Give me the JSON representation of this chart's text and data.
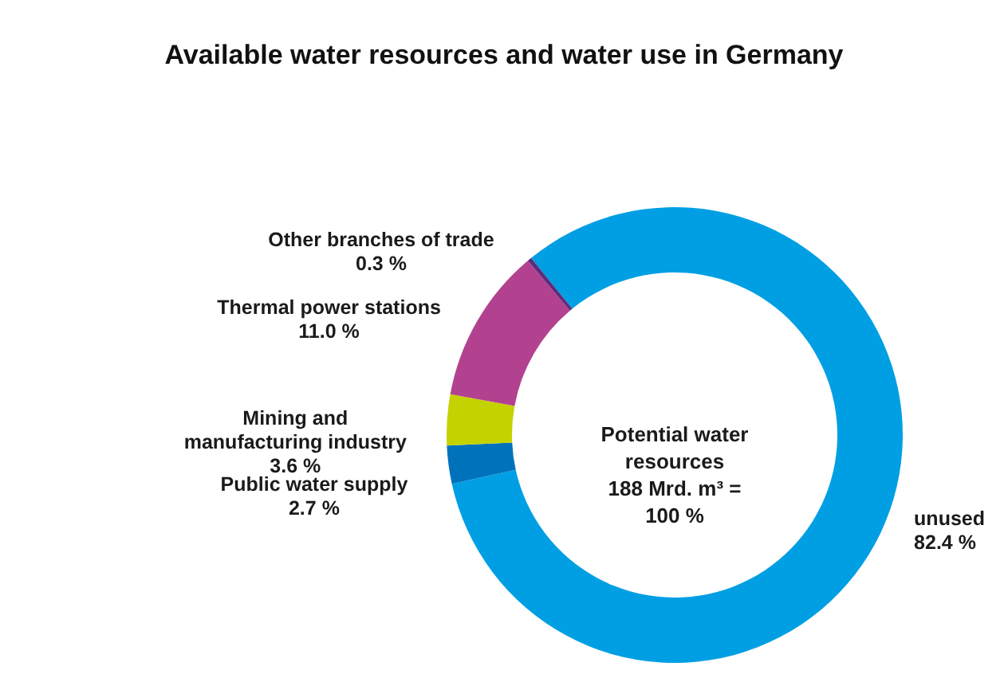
{
  "chart_data": {
    "type": "donut",
    "title": "Available water resources and water use in Germany",
    "categories": [
      "unused",
      "Public water supply",
      "Mining and manufacturing industry",
      "Thermal power stations",
      "Other branches of trade"
    ],
    "values": [
      82.4,
      2.7,
      3.6,
      11.0,
      0.3
    ],
    "colors": [
      "#009fe3",
      "#0072bc",
      "#c4d300",
      "#b2428f",
      "#5c2d7e"
    ],
    "value_labels": [
      "82.4 %",
      "2.7 %",
      "3.6 %",
      "11.0 %",
      "0.3 %"
    ],
    "annotations": [
      "Potential water resources",
      "188 Mrd. m³ = 100 %"
    ]
  }
}
